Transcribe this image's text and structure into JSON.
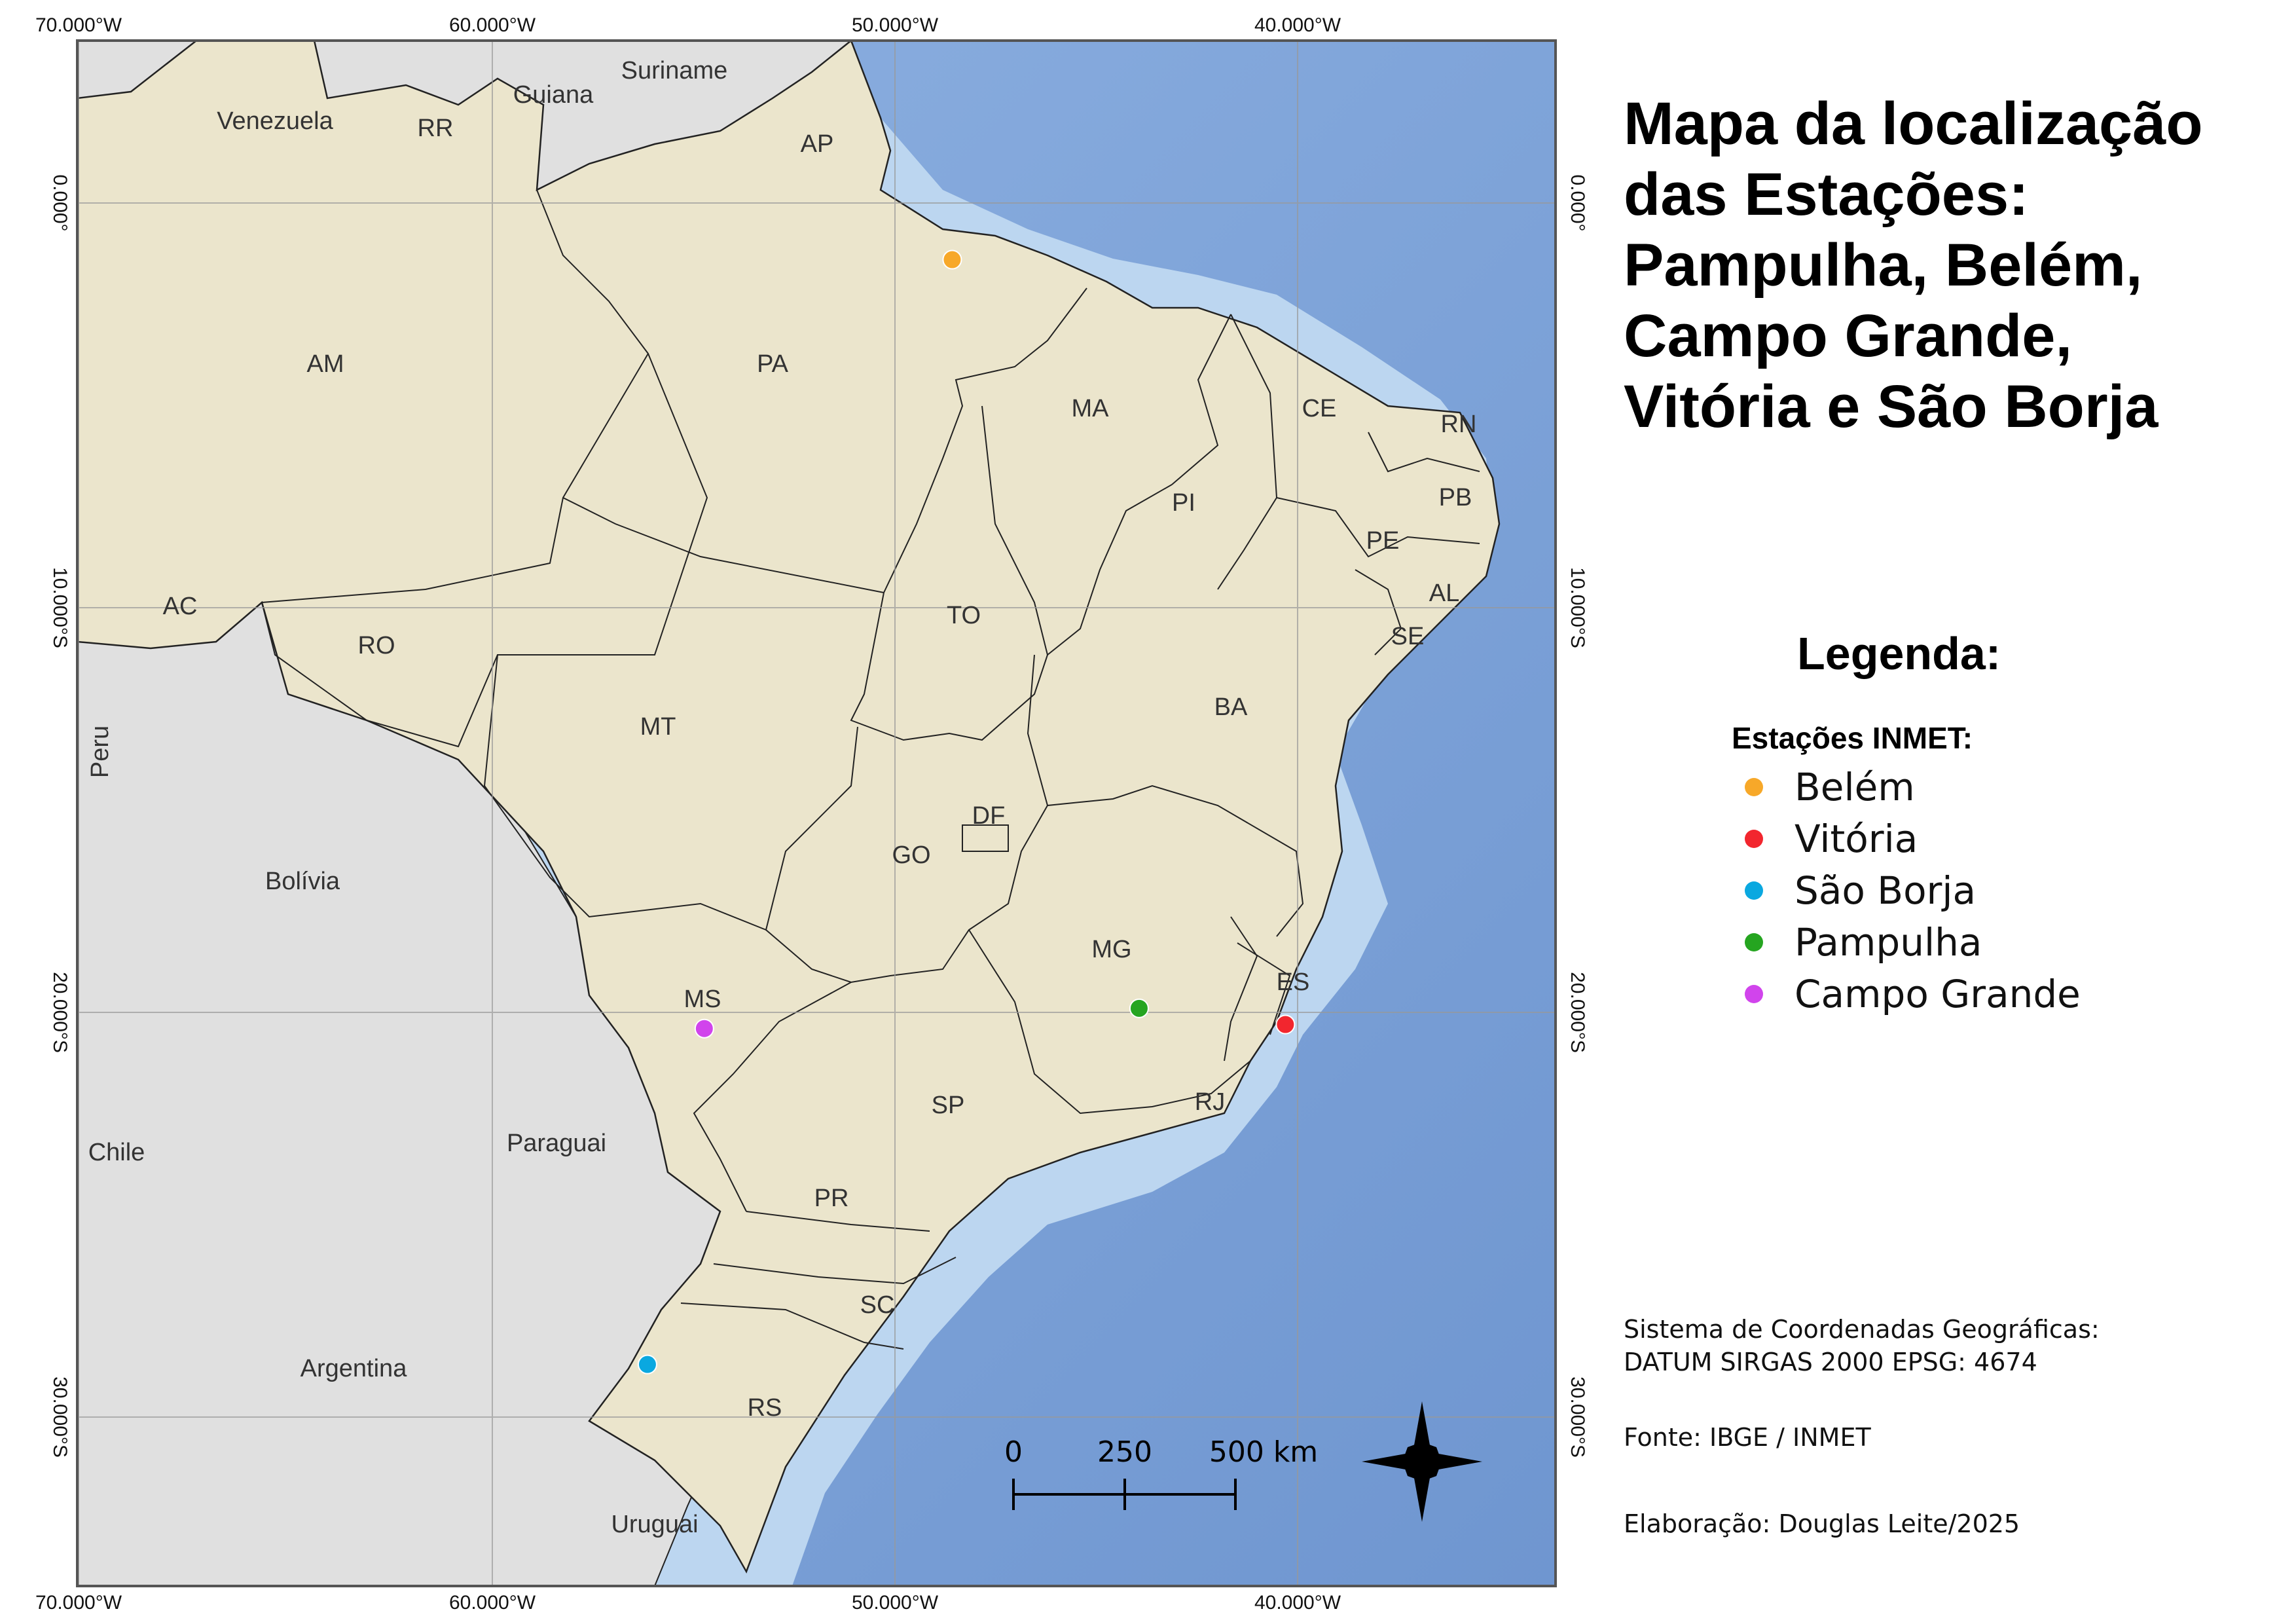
{
  "title_lines": [
    "Mapa da localização",
    "das Estações:",
    "Pampulha, Belém,",
    "Campo Grande,",
    "Vitória e São Borja"
  ],
  "legend": {
    "title": "Legenda:",
    "subtitle": "Estações INMET:",
    "items": [
      {
        "label": "Belém",
        "color": "#f7a829"
      },
      {
        "label": "Vitória",
        "color": "#f2262e"
      },
      {
        "label": "São Borja",
        "color": "#0aa8e0"
      },
      {
        "label": "Pampulha",
        "color": "#25a520"
      },
      {
        "label": "Campo Grande",
        "color": "#d144ec"
      }
    ]
  },
  "metadata": {
    "crs_line1": "Sistema de Coordenadas Geográficas:",
    "crs_line2": "DATUM SIRGAS 2000 EPSG: 4674",
    "source": "Fonte: IBGE / INMET",
    "author": "Elaboração: Douglas Leite/2025"
  },
  "graticule": {
    "lon_labels": [
      "70.000°W",
      "60.000°W",
      "50.000°W",
      "40.000°W"
    ],
    "lat_labels": [
      "0.000°",
      "10.000°S",
      "20.000°S",
      "30.000°S"
    ]
  },
  "scale_bar": {
    "labels": [
      "0",
      "250",
      "500 km"
    ]
  },
  "states": [
    "RR",
    "AP",
    "AM",
    "PA",
    "MA",
    "CE",
    "RN",
    "PB",
    "PI",
    "PE",
    "AL",
    "SE",
    "AC",
    "RO",
    "TO",
    "MT",
    "BA",
    "DF",
    "GO",
    "MG",
    "ES",
    "MS",
    "RJ",
    "SP",
    "PR",
    "SC",
    "RS"
  ],
  "countries": [
    "Venezuela",
    "Guiana",
    "Suriname",
    "Peru",
    "Bolívia",
    "Paraguai",
    "Chile",
    "Argentina",
    "Uruguai"
  ],
  "stations": [
    {
      "name": "Belém",
      "lon": -48.5,
      "lat": -1.4
    },
    {
      "name": "Vitória",
      "lon": -40.3,
      "lat": -20.3
    },
    {
      "name": "São Borja",
      "lon": -56.0,
      "lat": -28.7
    },
    {
      "name": "Pampulha",
      "lon": -43.9,
      "lat": -19.9
    },
    {
      "name": "Campo Grande",
      "lon": -54.6,
      "lat": -20.4
    }
  ],
  "colors": {
    "land": "#ebe5cc",
    "neighbor": "#e0e0e0",
    "ocean": "#7a9fd6",
    "shelf": "#bcd6f0"
  }
}
